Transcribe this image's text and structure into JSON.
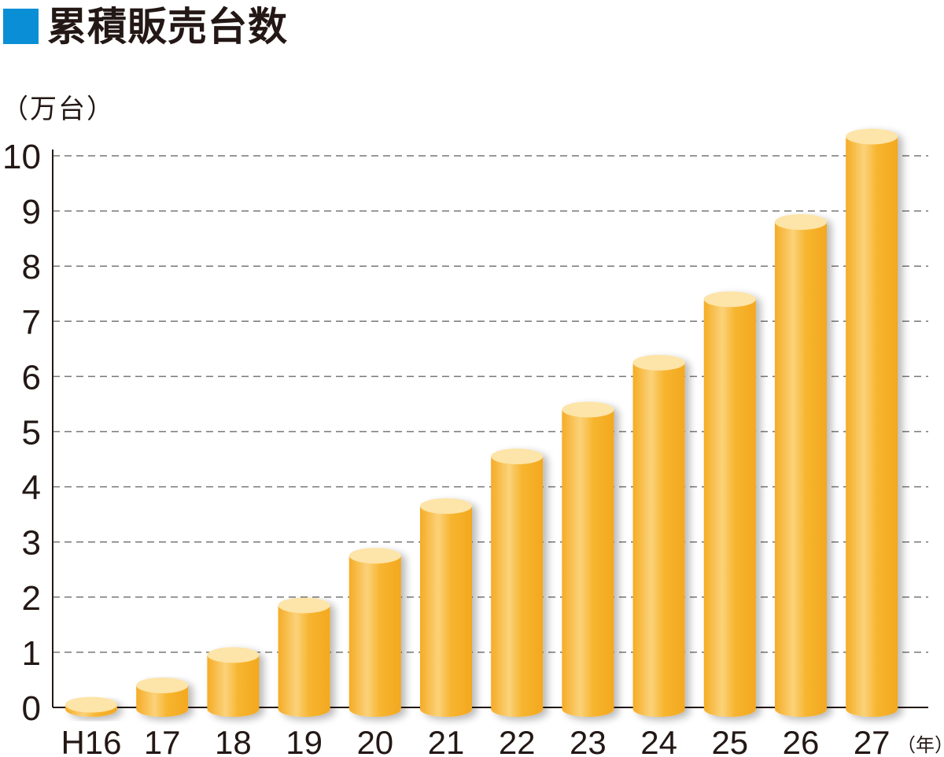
{
  "title": "累積販売台数",
  "colors": {
    "title_marker": "#0a8fd6",
    "bar_body": "#f7b52f",
    "bar_top": "#fde4a8",
    "bar_highlight": "#fbd27a",
    "grid": "#777777",
    "axis": "#231815"
  },
  "chart_data": {
    "type": "bar",
    "title": "累積販売台数",
    "ylabel": "（万台）",
    "xlabel_unit": "（年）",
    "categories": [
      "H16",
      "17",
      "18",
      "19",
      "20",
      "21",
      "22",
      "23",
      "24",
      "25",
      "26",
      "27"
    ],
    "values": [
      0.05,
      0.4,
      0.95,
      1.85,
      2.75,
      3.65,
      4.55,
      5.4,
      6.25,
      7.4,
      8.8,
      10.35
    ],
    "yticks": [
      "0",
      "1",
      "2",
      "3",
      "4",
      "5",
      "6",
      "7",
      "8",
      "9",
      "10"
    ],
    "ylim": [
      0,
      10
    ],
    "grid": true,
    "grid_style": "dashed",
    "bar_style": "cylinder",
    "legend": "none"
  }
}
